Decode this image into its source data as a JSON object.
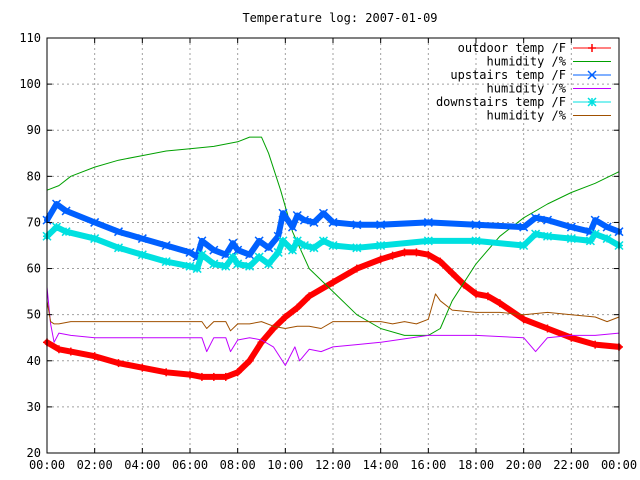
{
  "chart_data": {
    "type": "line",
    "title": "Temperature log: 2007-01-09",
    "xlabel": "",
    "ylabel": "",
    "xlim": [
      0,
      24
    ],
    "ylim": [
      20,
      110
    ],
    "x_ticks": [
      0,
      2,
      4,
      6,
      8,
      10,
      12,
      14,
      16,
      18,
      20,
      22,
      24
    ],
    "x_tick_labels": [
      "00:00",
      "02:00",
      "04:00",
      "06:00",
      "08:00",
      "10:00",
      "12:00",
      "14:00",
      "16:00",
      "18:00",
      "20:00",
      "22:00",
      "00:00"
    ],
    "y_ticks": [
      20,
      30,
      40,
      50,
      60,
      70,
      80,
      90,
      100,
      110
    ],
    "grid": true,
    "legend": "top-right",
    "series": [
      {
        "name": "outdoor temp /F",
        "color": "#ff0000",
        "marker": "plus",
        "x": [
          0,
          0.5,
          1,
          2,
          3,
          4,
          5,
          6,
          6.5,
          7,
          7.5,
          8,
          8.5,
          9,
          9.5,
          10,
          10.5,
          11,
          12,
          13,
          14,
          14.5,
          15,
          15.5,
          16,
          16.5,
          17,
          17.5,
          18,
          18.5,
          19,
          20,
          21,
          22,
          23,
          24
        ],
        "y": [
          44,
          42.5,
          42,
          41,
          39.5,
          38.5,
          37.5,
          37,
          36.5,
          36.5,
          36.5,
          37.5,
          40,
          44,
          47,
          49.5,
          51.5,
          54,
          57,
          60,
          62,
          62.8,
          63.5,
          63.5,
          63,
          61.5,
          59,
          56.5,
          54.5,
          54,
          52.5,
          49,
          47,
          45,
          43.5,
          43
        ]
      },
      {
        "name": "humidity /%",
        "color": "#00a000",
        "marker": "none",
        "x": [
          0,
          0.5,
          1,
          2,
          3,
          4,
          5,
          6,
          7,
          8,
          8.5,
          9,
          9.3,
          9.8,
          10.3,
          11,
          12,
          13,
          14,
          15,
          16,
          16.5,
          17,
          18,
          19,
          20,
          21,
          22,
          23,
          24
        ],
        "y": [
          77,
          78,
          80,
          82,
          83.5,
          84.5,
          85.5,
          86,
          86.5,
          87.5,
          88.5,
          88.5,
          85,
          77,
          68,
          60,
          55,
          50,
          47,
          45.5,
          45.5,
          47,
          53,
          61,
          67,
          71,
          74,
          76.5,
          78.5,
          81
        ]
      },
      {
        "name": "upstairs temp /F",
        "color": "#0060ff",
        "marker": "x",
        "x": [
          0,
          0.4,
          0.8,
          2,
          3,
          4,
          5,
          6,
          6.3,
          6.5,
          7,
          7.5,
          7.8,
          8,
          8.5,
          8.9,
          9.3,
          9.7,
          9.9,
          10.3,
          10.5,
          10.8,
          11.2,
          11.6,
          12,
          13,
          14,
          16,
          18,
          20,
          20.5,
          21,
          22,
          22.8,
          23,
          23.5,
          24
        ],
        "y": [
          70.5,
          74,
          72.5,
          70,
          68,
          66.5,
          65,
          63.5,
          62.5,
          66,
          64,
          63,
          65.5,
          64,
          63,
          66,
          64.5,
          67,
          72,
          69,
          71.5,
          70.5,
          70,
          72,
          70,
          69.5,
          69.5,
          70,
          69.5,
          69,
          71,
          70.5,
          69,
          68,
          70.5,
          69,
          68
        ]
      },
      {
        "name": "humidity /%",
        "color": "#c000ff",
        "marker": "none",
        "x": [
          0,
          0.15,
          0.3,
          0.5,
          1,
          2,
          3,
          4,
          5,
          6,
          6.5,
          6.7,
          7,
          7.5,
          7.7,
          8,
          8.5,
          9,
          9.5,
          10,
          10.4,
          10.6,
          11,
          11.5,
          12,
          13,
          14,
          16,
          18,
          20,
          20.5,
          21,
          22,
          23,
          24
        ],
        "y": [
          56,
          48,
          44,
          46,
          45.5,
          45,
          45,
          45,
          45,
          45,
          45,
          42,
          45,
          45,
          42,
          44.5,
          45,
          44.5,
          43,
          39,
          43,
          40,
          42.5,
          42,
          43,
          43.5,
          44,
          45.5,
          45.5,
          45,
          42,
          45,
          45.5,
          45.5,
          46
        ]
      },
      {
        "name": "downstairs temp /F",
        "color": "#00e0e0",
        "marker": "star",
        "x": [
          0,
          0.4,
          0.8,
          2,
          3,
          4,
          5,
          6,
          6.3,
          6.5,
          7,
          7.5,
          7.8,
          8,
          8.5,
          8.9,
          9.3,
          9.7,
          9.9,
          10.3,
          10.5,
          10.8,
          11.2,
          11.6,
          12,
          13,
          14,
          16,
          18,
          20,
          20.5,
          21,
          22,
          22.8,
          23,
          23.5,
          24
        ],
        "y": [
          67,
          69,
          68,
          66.5,
          64.5,
          63,
          61.5,
          60.5,
          60,
          63,
          61,
          60.5,
          62.5,
          61,
          60.5,
          62.5,
          61,
          63.5,
          66,
          64,
          66,
          65,
          64.5,
          66,
          65,
          64.5,
          65,
          66,
          66,
          65,
          67.5,
          67,
          66.5,
          66,
          67.5,
          66.5,
          65
        ]
      },
      {
        "name": "humidity /%",
        "color": "#a05000",
        "marker": "none",
        "x": [
          0,
          0.15,
          0.3,
          0.5,
          1,
          2,
          3,
          4,
          5,
          6,
          6.5,
          6.7,
          7,
          7.5,
          7.7,
          8,
          8.5,
          9,
          9.5,
          10,
          10.5,
          11,
          11.5,
          12,
          13,
          14,
          14.5,
          15,
          15.5,
          16,
          16.3,
          16.5,
          17,
          18,
          19,
          20,
          21,
          22,
          23,
          23.5,
          24
        ],
        "y": [
          53,
          48.5,
          48,
          48,
          48.5,
          48.5,
          48.5,
          48.5,
          48.5,
          48.5,
          48.5,
          47,
          48.5,
          48.5,
          46.5,
          48,
          48,
          48.5,
          47.5,
          47,
          47.5,
          47.5,
          47,
          48.5,
          48.5,
          48.5,
          48,
          48.5,
          48,
          49,
          54.5,
          53,
          51,
          50.5,
          50.5,
          50,
          50.5,
          50,
          49.5,
          48.5,
          49.5
        ]
      }
    ]
  }
}
